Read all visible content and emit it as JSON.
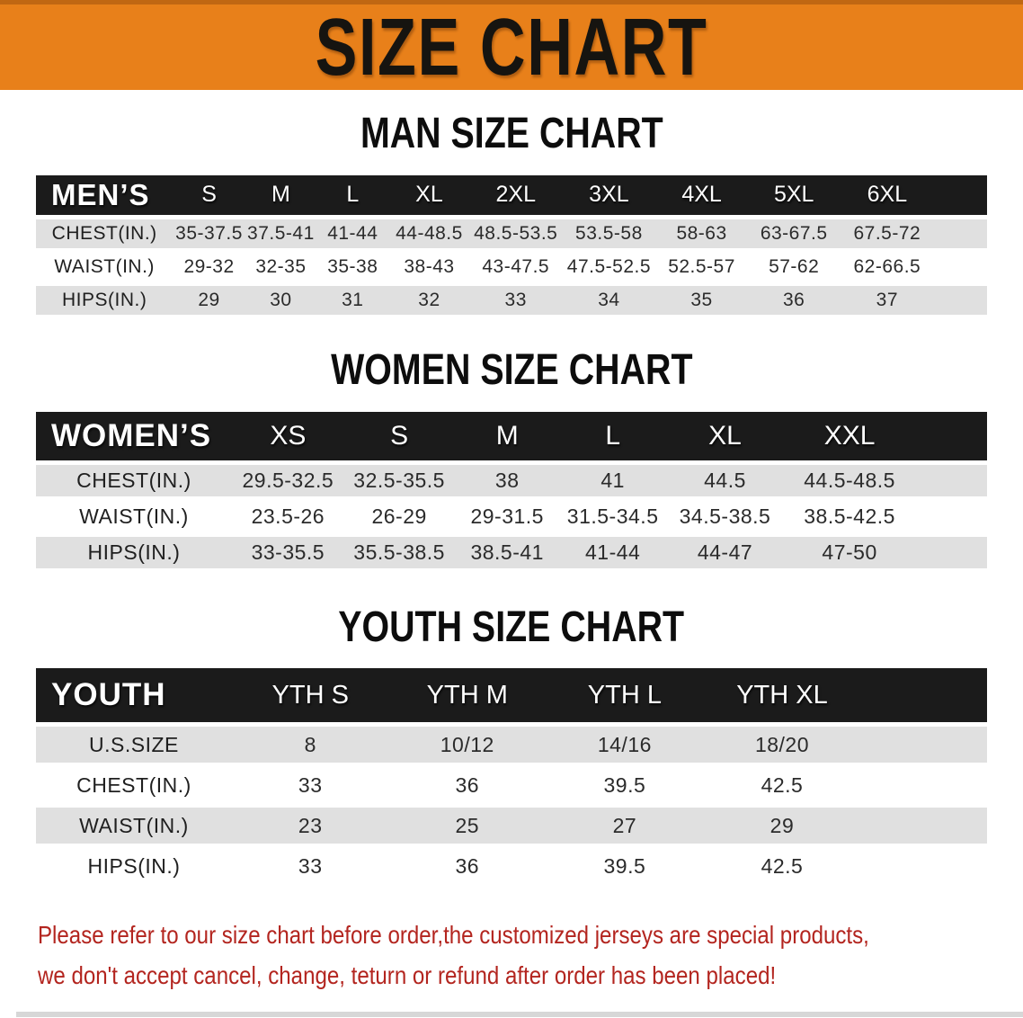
{
  "banner": {
    "title": "SIZE CHART"
  },
  "colors": {
    "banner_bg": "#E8801A",
    "banner_edge": "#C06712",
    "banner_text": "#161410",
    "header_bar_bg": "#1B1B1B",
    "header_bar_text": "#FFFFFF",
    "row_stripe": "#E0E0E0",
    "row_alt": "#FFFFFF",
    "body_text": "#2B2B2B",
    "disclaimer_text": "#B3251F",
    "bottom_strip": "#D7D7D7"
  },
  "chart_data": [
    {
      "type": "table",
      "title": "MAN SIZE CHART",
      "corner_label": "MEN’S",
      "columns": [
        "S",
        "M",
        "L",
        "XL",
        "2XL",
        "3XL",
        "4XL",
        "5XL",
        "6XL"
      ],
      "rows": [
        {
          "label": "CHEST(IN.)",
          "values": [
            "35-37.5",
            "37.5-41",
            "41-44",
            "44-48.5",
            "48.5-53.5",
            "53.5-58",
            "58-63",
            "63-67.5",
            "67.5-72"
          ]
        },
        {
          "label": "WAIST(IN.)",
          "values": [
            "29-32",
            "32-35",
            "35-38",
            "38-43",
            "43-47.5",
            "47.5-52.5",
            "52.5-57",
            "57-62",
            "62-66.5"
          ]
        },
        {
          "label": "HIPS(IN.)",
          "values": [
            "29",
            "30",
            "31",
            "32",
            "33",
            "34",
            "35",
            "36",
            "37"
          ]
        }
      ]
    },
    {
      "type": "table",
      "title": "WOMEN SIZE CHART",
      "corner_label": "WOMEN’S",
      "columns": [
        "XS",
        "S",
        "M",
        "L",
        "XL",
        "XXL"
      ],
      "rows": [
        {
          "label": "CHEST(IN.)",
          "values": [
            "29.5-32.5",
            "32.5-35.5",
            "38",
            "41",
            "44.5",
            "44.5-48.5"
          ]
        },
        {
          "label": "WAIST(IN.)",
          "values": [
            "23.5-26",
            "26-29",
            "29-31.5",
            "31.5-34.5",
            "34.5-38.5",
            "38.5-42.5"
          ]
        },
        {
          "label": "HIPS(IN.)",
          "values": [
            "33-35.5",
            "35.5-38.5",
            "38.5-41",
            "41-44",
            "44-47",
            "47-50"
          ]
        }
      ]
    },
    {
      "type": "table",
      "title": "YOUTH SIZE CHART",
      "corner_label": "YOUTH",
      "columns": [
        "YTH S",
        "YTH M",
        "YTH L",
        "YTH XL"
      ],
      "rows": [
        {
          "label": "U.S.SIZE",
          "values": [
            "8",
            "10/12",
            "14/16",
            "18/20"
          ]
        },
        {
          "label": "CHEST(IN.)",
          "values": [
            "33",
            "36",
            "39.5",
            "42.5"
          ]
        },
        {
          "label": "WAIST(IN.)",
          "values": [
            "23",
            "25",
            "27",
            "29"
          ]
        },
        {
          "label": "HIPS(IN.)",
          "values": [
            "33",
            "36",
            "39.5",
            "42.5"
          ]
        }
      ]
    }
  ],
  "disclaimer": {
    "line1": "Please refer to our size chart before order,the customized jerseys are special products,",
    "line2": "we don't accept cancel, change, teturn or refund after order has been placed!"
  }
}
